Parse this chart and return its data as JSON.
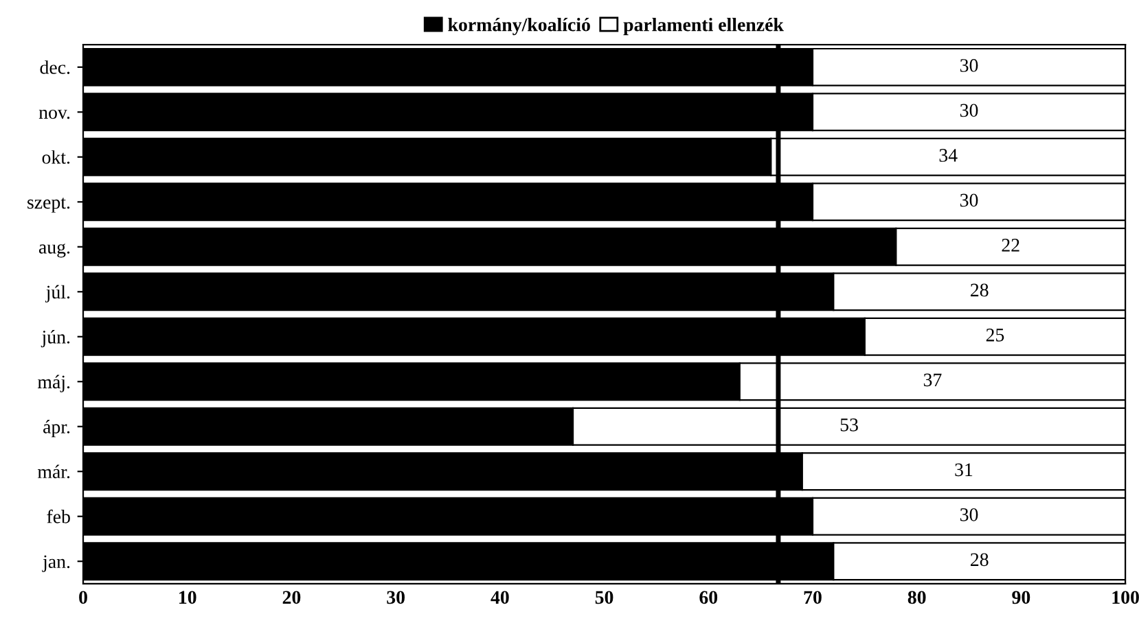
{
  "chart_data": {
    "type": "bar",
    "orientation": "horizontal",
    "stacked": true,
    "categories": [
      "dec.",
      "nov.",
      "okt.",
      "szept.",
      "aug.",
      "júl.",
      "jún.",
      "máj.",
      "ápr.",
      "már.",
      "feb",
      "jan."
    ],
    "series": [
      {
        "name": "kormány/koalíció",
        "color": "#000000",
        "values": [
          70,
          70,
          66,
          70,
          78,
          72,
          75,
          63,
          47,
          69,
          70,
          72
        ]
      },
      {
        "name": "parlamenti ellenzék",
        "color": "#ffffff",
        "values": [
          30,
          30,
          34,
          30,
          22,
          28,
          25,
          37,
          53,
          31,
          30,
          28
        ],
        "value_labels": [
          "30",
          "30",
          "34",
          "30",
          "22",
          "28",
          "25",
          "37",
          "53",
          "31",
          "30",
          "28"
        ]
      }
    ],
    "xlim": [
      0,
      100
    ],
    "xticks": [
      0,
      10,
      20,
      30,
      40,
      50,
      60,
      70,
      80,
      90,
      100
    ],
    "ref_lines": [
      {
        "axis": "x",
        "value": 66.7,
        "color": "#000000"
      }
    ],
    "grid": false,
    "legend": "top"
  }
}
